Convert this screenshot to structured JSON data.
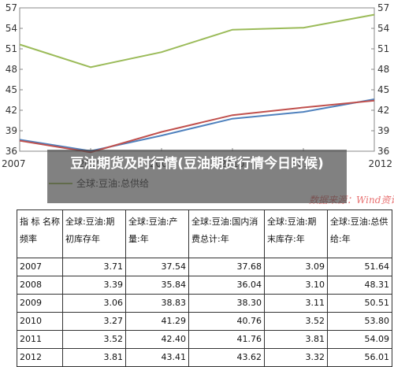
{
  "colors": {
    "total_supply": "#9bbb59",
    "beginning_stock": "#4f81bd",
    "ending_stock": "#c0504d",
    "overlay_bg": "#464646"
  },
  "overlay": {
    "title": "豆油期货及时行情(豆油期货行情今日时候)"
  },
  "watermark": "数据来源：Wind资讯",
  "chart_data": {
    "type": "line",
    "x": [
      "2007",
      "2008",
      "2009",
      "2010",
      "2011",
      "2012"
    ],
    "ylim": [
      36,
      57
    ],
    "yticks": [
      "36",
      "39",
      "42",
      "45",
      "48",
      "51",
      "54",
      "57"
    ],
    "grid": false,
    "legend_position": "bottom-left",
    "legend_visible_label": "全球:豆油:总供给",
    "series": [
      {
        "name": "全球:豆油:总供给",
        "color_key": "total_supply",
        "values": [
          51.64,
          48.31,
          50.51,
          53.8,
          54.09,
          56.01
        ]
      },
      {
        "color_key": "beginning_stock",
        "values": [
          37.68,
          36.04,
          38.3,
          40.76,
          41.76,
          43.62
        ]
      },
      {
        "color_key": "ending_stock",
        "values": [
          37.54,
          35.84,
          38.83,
          41.29,
          42.4,
          43.41
        ]
      }
    ]
  },
  "table": {
    "headers": [
      "指 标 名称频率",
      "全球:豆油:期初库存年",
      "全球:豆油:产量:年",
      "全球:豆油:国内消费总计:年",
      "全球:豆油:期末库存:年",
      "全球:豆油:总供给:年"
    ],
    "rows": [
      [
        "2007",
        "3.71",
        "37.54",
        "37.68",
        "3.09",
        "51.64"
      ],
      [
        "2008",
        "3.39",
        "35.84",
        "36.04",
        "3.10",
        "48.31"
      ],
      [
        "2009",
        "3.06",
        "38.83",
        "38.30",
        "3.11",
        "50.51"
      ],
      [
        "2010",
        "3.27",
        "41.29",
        "40.76",
        "3.52",
        "53.80"
      ],
      [
        "2011",
        "3.52",
        "42.40",
        "41.76",
        "3.81",
        "54.09"
      ],
      [
        "2012",
        "3.81",
        "43.41",
        "43.62",
        "3.32",
        "56.01"
      ]
    ]
  }
}
